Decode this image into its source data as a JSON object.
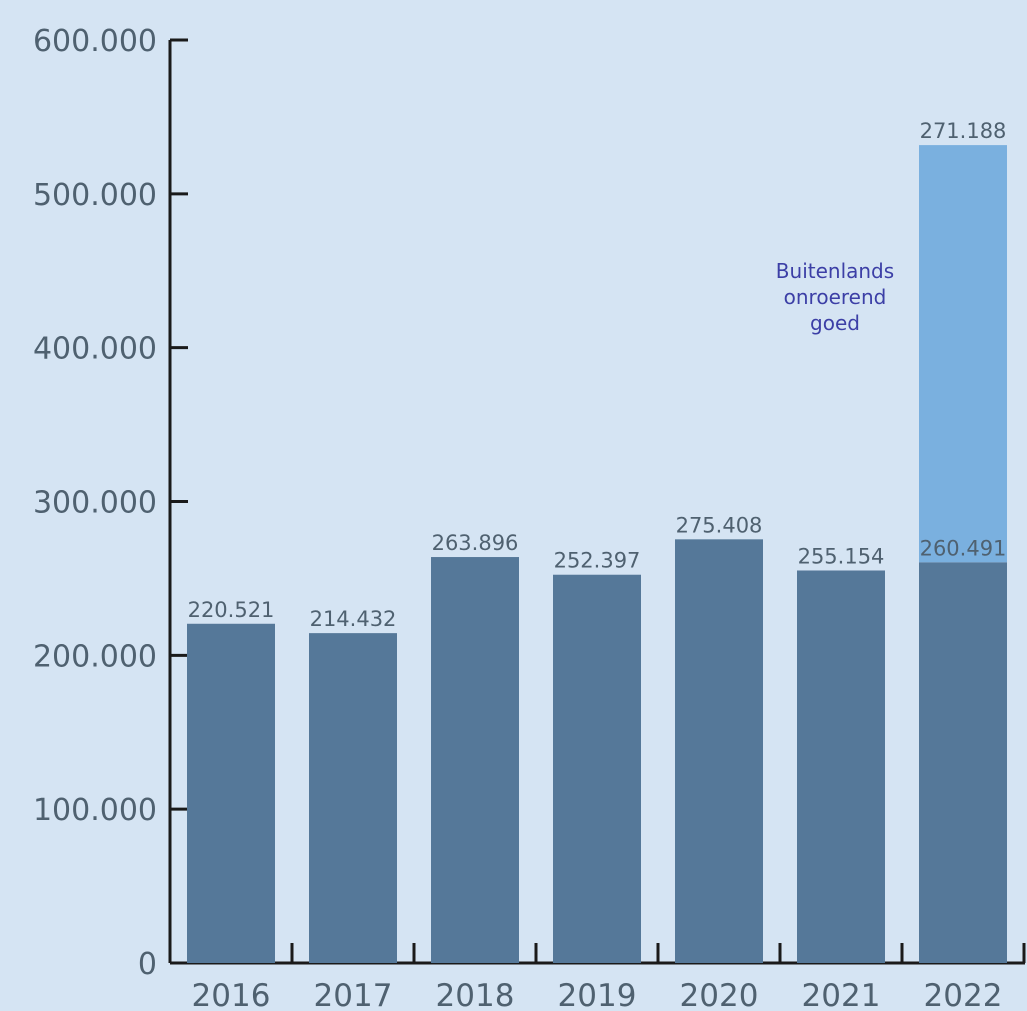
{
  "colors": {
    "background": "#d5e4f3",
    "domestic_bar": "#557899",
    "foreign_bar": "#7ab0df",
    "axis": "#1a1a1a",
    "tick_text": "#4f6170",
    "annotation_text": "#3c3fa6"
  },
  "chart_data": {
    "type": "bar",
    "stacked": true,
    "title": "",
    "xlabel": "",
    "ylabel": "",
    "ylim": [
      0,
      600000
    ],
    "yticks": [
      0,
      100000,
      200000,
      300000,
      400000,
      500000,
      600000
    ],
    "ytick_labels": [
      "0",
      "100.000",
      "200.000",
      "300.000",
      "400.000",
      "500.000",
      "600.000"
    ],
    "categories": [
      "2016",
      "2017",
      "2018",
      "2019",
      "2020",
      "2021",
      "2022"
    ],
    "series": [
      {
        "values": [
          220521,
          214432,
          263896,
          252397,
          275408,
          255154,
          260491
        ],
        "labels": [
          "220.521",
          "214.432",
          "263.896",
          "252.397",
          "275.408",
          "255.154",
          "260.491"
        ],
        "color": "#557899"
      },
      {
        "values": [
          null,
          null,
          null,
          null,
          null,
          null,
          271188
        ],
        "labels": [
          null,
          null,
          null,
          null,
          null,
          null,
          "271.188"
        ],
        "color": "#7ab0df"
      }
    ],
    "annotations": [
      {
        "category": "2022",
        "series": 1,
        "lines": [
          "Buitenlands",
          "onroerend",
          "goed"
        ]
      }
    ],
    "grid": false,
    "legend": "none"
  }
}
